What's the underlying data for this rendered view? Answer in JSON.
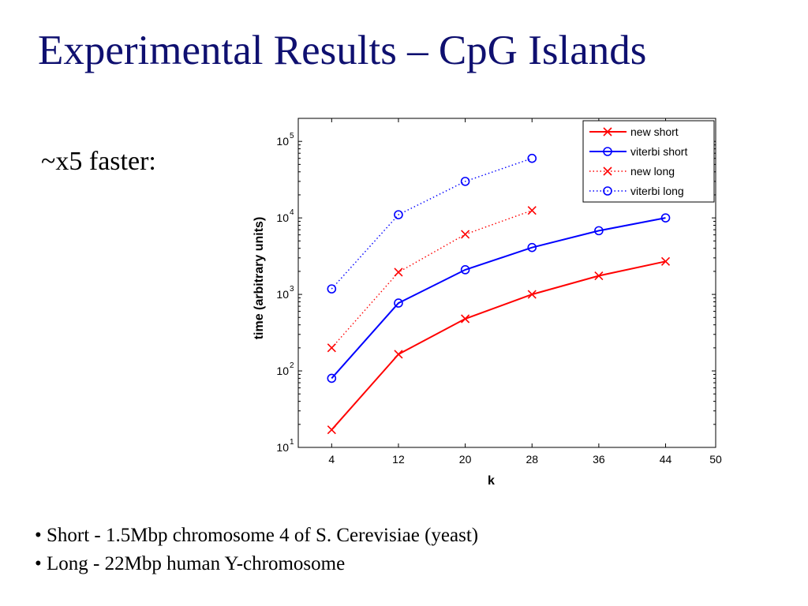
{
  "slide": {
    "title": "Experimental Results – CpG Islands",
    "subtitle": "~x5 faster:",
    "bullets": [
      "• Short - 1.5Mbp chromosome 4 of S. Cerevisiae (yeast)",
      "• Long -  22Mbp human Y-chromosome"
    ]
  },
  "chart_data": {
    "type": "line",
    "title": "",
    "xlabel": "k",
    "ylabel": "time (arbitrary units)",
    "xlim": [
      0,
      50
    ],
    "ylim": [
      10,
      200000
    ],
    "yscale": "log",
    "xticks": [
      4,
      12,
      20,
      28,
      36,
      44,
      50
    ],
    "yticks": [
      10,
      100,
      1000,
      10000,
      100000
    ],
    "legend_position": "top-right",
    "series": [
      {
        "name": "new short",
        "color": "#ff0000",
        "dash": "solid",
        "marker": "x",
        "x": [
          4,
          12,
          20,
          28,
          36,
          44
        ],
        "values": [
          17,
          165,
          480,
          1000,
          1750,
          2700
        ]
      },
      {
        "name": "viterbi short",
        "color": "#0000ff",
        "dash": "solid",
        "marker": "o",
        "x": [
          4,
          12,
          20,
          28,
          36,
          44
        ],
        "values": [
          80,
          770,
          2100,
          4100,
          6800,
          10000
        ]
      },
      {
        "name": "new long",
        "color": "#ff0000",
        "dash": "dotted",
        "marker": "x",
        "x": [
          4,
          12,
          20,
          28
        ],
        "values": [
          200,
          1950,
          6100,
          12500
        ]
      },
      {
        "name": "viterbi long",
        "color": "#0000ff",
        "dash": "dotted",
        "marker": "o",
        "x": [
          4,
          12,
          20,
          28
        ],
        "values": [
          1180,
          11000,
          30000,
          60000
        ]
      }
    ]
  }
}
